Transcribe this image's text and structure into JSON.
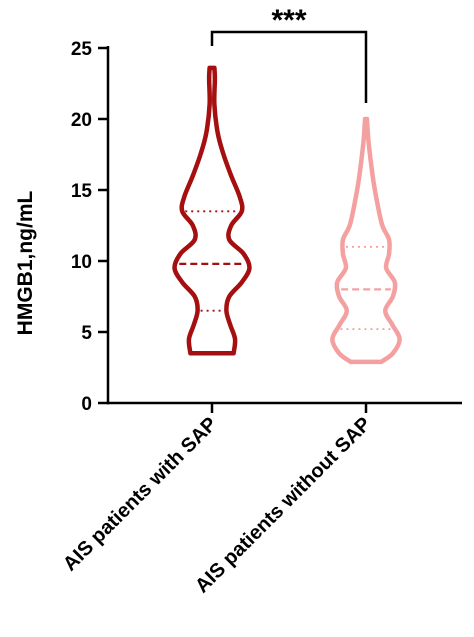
{
  "chart_data": {
    "type": "violin",
    "ylabel": "HMGB1,ng/mL",
    "ylim": [
      0,
      25
    ],
    "yticks": [
      "0",
      "5",
      "10",
      "15",
      "20",
      "25"
    ],
    "categories": [
      "AIS patients with SAP",
      "AIS patients without SAP"
    ],
    "series": [
      {
        "color": "#a50f0f",
        "min": 3.5,
        "max": 23.6,
        "q1": 6.5,
        "median": 9.8,
        "q3": 13.5,
        "density": [
          [
            3.5,
            0.45
          ],
          [
            4.5,
            0.48
          ],
          [
            5.5,
            0.38
          ],
          [
            6.5,
            0.3
          ],
          [
            7.5,
            0.36
          ],
          [
            8.5,
            0.62
          ],
          [
            9.5,
            0.78
          ],
          [
            10.5,
            0.66
          ],
          [
            11.5,
            0.36
          ],
          [
            12.5,
            0.4
          ],
          [
            13.5,
            0.62
          ],
          [
            14.5,
            0.58
          ],
          [
            16,
            0.4
          ],
          [
            17.5,
            0.24
          ],
          [
            19,
            0.12
          ],
          [
            21,
            0.05
          ],
          [
            22.8,
            0.06
          ],
          [
            23.6,
            0.05
          ]
        ]
      },
      {
        "color": "#f4a0a0",
        "min": 2.9,
        "max": 20.0,
        "q1": 5.2,
        "median": 8.0,
        "q3": 11.0,
        "density": [
          [
            2.9,
            0.32
          ],
          [
            3.5,
            0.56
          ],
          [
            4.5,
            0.7
          ],
          [
            5.5,
            0.55
          ],
          [
            6.5,
            0.4
          ],
          [
            7.5,
            0.56
          ],
          [
            8.5,
            0.6
          ],
          [
            9.5,
            0.42
          ],
          [
            10.5,
            0.48
          ],
          [
            11.5,
            0.48
          ],
          [
            12.5,
            0.34
          ],
          [
            14,
            0.24
          ],
          [
            15.5,
            0.16
          ],
          [
            17,
            0.1
          ],
          [
            18.5,
            0.05
          ],
          [
            20.0,
            0.02
          ]
        ]
      }
    ],
    "annotation": {
      "text": "***",
      "from": 0,
      "to": 1
    }
  }
}
